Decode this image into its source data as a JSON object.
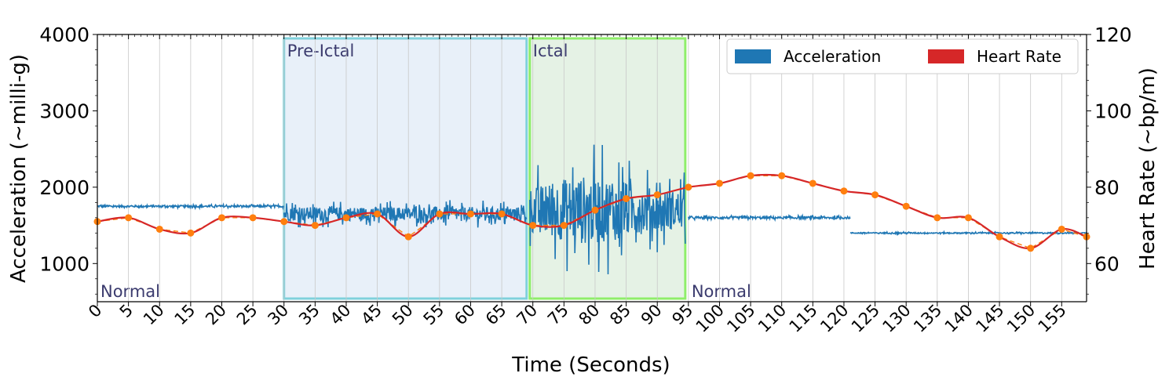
{
  "chart_data": {
    "type": "line",
    "xlabel": "Time (Seconds)",
    "ylabel_left": "Acceleration (~milli-g)",
    "ylabel_right": "Heart Rate (~bp/m)",
    "xlim": [
      0,
      159
    ],
    "ylim_left": [
      500,
      4000
    ],
    "ylim_right": [
      50,
      120
    ],
    "x_ticks": [
      0,
      5,
      10,
      15,
      20,
      25,
      30,
      35,
      40,
      45,
      50,
      55,
      60,
      65,
      70,
      75,
      80,
      85,
      90,
      95,
      100,
      105,
      110,
      115,
      120,
      125,
      130,
      135,
      140,
      145,
      150,
      155
    ],
    "y_ticks_left": [
      1000,
      2000,
      3000,
      4000
    ],
    "y_ticks_right": [
      60,
      80,
      100,
      120
    ],
    "grid": "vertical",
    "legend_position": "top-right",
    "legend": [
      "Acceleration",
      "Heart Rate"
    ],
    "regions": [
      {
        "label": "Normal",
        "x_start": 0,
        "x_end": 30,
        "fill": "",
        "stroke": ""
      },
      {
        "label": "Pre-Ictal",
        "x_start": 30,
        "x_end": 69,
        "fill": "#e8f0f9",
        "stroke": "#7fd1dc"
      },
      {
        "label": "Ictal",
        "x_start": 69.5,
        "x_end": 94.5,
        "fill": "#e5f2e5",
        "stroke": "#8fee6a"
      },
      {
        "label": "Normal",
        "x_start": 95,
        "x_end": 159,
        "fill": "",
        "stroke": ""
      }
    ],
    "series": [
      {
        "name": "Heart Rate",
        "color": "#d62728",
        "marker_color": "#ff7f0e",
        "x": [
          0,
          5,
          10,
          15,
          20,
          25,
          30,
          35,
          40,
          45,
          50,
          55,
          60,
          65,
          70,
          75,
          80,
          85,
          90,
          95,
          100,
          105,
          110,
          115,
          120,
          125,
          130,
          135,
          140,
          145,
          150,
          155,
          159
        ],
        "y": [
          71,
          72,
          69,
          68,
          72,
          72,
          71,
          70,
          72,
          73,
          67,
          73,
          73,
          73,
          70,
          70,
          74,
          77,
          78,
          80,
          81,
          83,
          83,
          81,
          79,
          78,
          75,
          72,
          72,
          67,
          64,
          69,
          67
        ]
      },
      {
        "name": "Acceleration",
        "color": "#1f77b4",
        "segments": [
          {
            "x_start": 0,
            "x_end": 30,
            "base": 1750,
            "amp": 25
          },
          {
            "x_start": 30,
            "x_end": 69,
            "base": 1650,
            "amp": 180
          },
          {
            "x_start": 69.5,
            "x_end": 94.5,
            "base": 1700,
            "amp": 900
          },
          {
            "x_start": 95,
            "x_end": 121,
            "base": 1600,
            "amp": 30
          },
          {
            "x_start": 121,
            "x_end": 159,
            "base": 1400,
            "amp": 15
          }
        ]
      }
    ]
  }
}
